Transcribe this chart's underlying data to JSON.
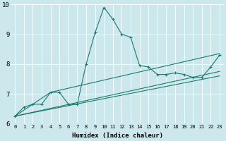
{
  "xlabel": "Humidex (Indice chaleur)",
  "xlim": [
    -0.5,
    23.5
  ],
  "ylim": [
    6,
    10
  ],
  "xticks": [
    0,
    1,
    2,
    3,
    4,
    5,
    6,
    7,
    8,
    9,
    10,
    11,
    12,
    13,
    14,
    15,
    16,
    17,
    18,
    19,
    20,
    21,
    22,
    23
  ],
  "yticks": [
    6,
    7,
    8,
    9,
    10
  ],
  "bg_color": "#cce8ec",
  "line_color": "#1a7a6e",
  "line1_x": [
    0,
    1,
    2,
    3,
    4,
    5,
    6,
    7,
    8,
    9,
    10,
    11,
    12,
    13,
    14,
    15,
    16,
    17,
    18,
    19,
    20,
    21,
    22,
    23
  ],
  "line1_y": [
    6.25,
    6.55,
    6.65,
    6.65,
    7.05,
    7.05,
    6.65,
    6.65,
    8.0,
    9.05,
    9.9,
    9.5,
    9.0,
    8.9,
    7.95,
    7.9,
    7.65,
    7.65,
    7.7,
    7.65,
    7.55,
    7.55,
    7.9,
    8.3
  ],
  "line2_x": [
    0,
    4,
    23
  ],
  "line2_y": [
    6.25,
    7.05,
    8.35
  ],
  "line3_x": [
    0,
    23
  ],
  "line3_y": [
    6.25,
    7.75
  ],
  "line4_x": [
    0,
    23
  ],
  "line4_y": [
    6.25,
    7.6
  ]
}
